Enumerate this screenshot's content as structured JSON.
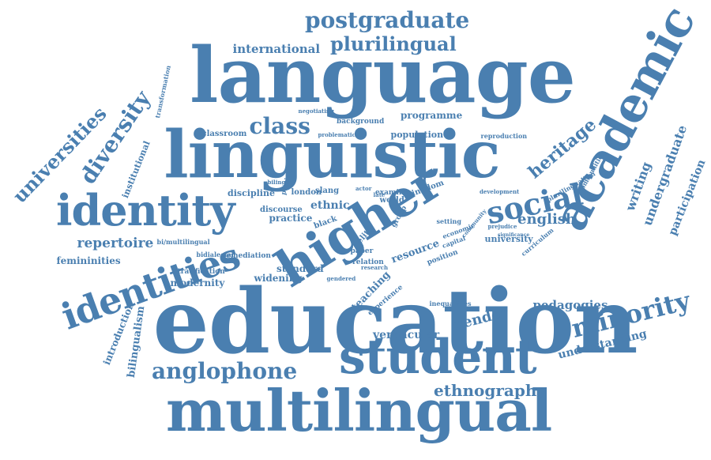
{
  "colors": {
    "word": "#4a7fb0",
    "background": "#ffffff"
  },
  "words": [
    {
      "id": "education",
      "text": "education"
    },
    {
      "id": "language",
      "text": "language"
    },
    {
      "id": "linguistic",
      "text": "linguistic"
    },
    {
      "id": "multilingual",
      "text": "multilingual"
    },
    {
      "id": "higher",
      "text": "higher"
    },
    {
      "id": "student",
      "text": "student"
    },
    {
      "id": "academic",
      "text": "academic"
    },
    {
      "id": "identity",
      "text": "identity"
    },
    {
      "id": "identities",
      "text": "identities"
    },
    {
      "id": "social",
      "text": "social"
    },
    {
      "id": "minority",
      "text": "minority"
    },
    {
      "id": "anglophone",
      "text": "anglophone"
    },
    {
      "id": "diversity",
      "text": "diversity"
    },
    {
      "id": "universities",
      "text": "universities"
    },
    {
      "id": "postgraduate",
      "text": "postgraduate"
    },
    {
      "id": "plurilingual",
      "text": "plurilingual"
    },
    {
      "id": "class",
      "text": "class"
    },
    {
      "id": "heritage",
      "text": "heritage"
    },
    {
      "id": "ethnography",
      "text": "ethnography"
    },
    {
      "id": "gender",
      "text": "gender"
    },
    {
      "id": "english",
      "text": "english"
    },
    {
      "id": "repertoire",
      "text": "repertoire"
    },
    {
      "id": "international",
      "text": "international"
    },
    {
      "id": "undergraduate",
      "text": "undergraduate"
    },
    {
      "id": "writing",
      "text": "writing"
    },
    {
      "id": "participation",
      "text": "participation"
    },
    {
      "id": "pedagogies",
      "text": "pedagogies"
    },
    {
      "id": "understanding",
      "text": "understanding"
    },
    {
      "id": "vernacular",
      "text": "vernacular"
    },
    {
      "id": "bilingualism",
      "text": "bilingualism"
    },
    {
      "id": "introduction",
      "text": "introduction"
    },
    {
      "id": "femininities",
      "text": "femininities"
    },
    {
      "id": "modernity",
      "text": "modernity"
    },
    {
      "id": "institutional",
      "text": "institutional"
    },
    {
      "id": "programme",
      "text": "programme"
    },
    {
      "id": "teaching",
      "text": "teaching"
    },
    {
      "id": "resource",
      "text": "resource"
    },
    {
      "id": "ethnic",
      "text": "ethnic"
    },
    {
      "id": "practice",
      "text": "practice"
    },
    {
      "id": "standard",
      "text": "standard"
    },
    {
      "id": "widening",
      "text": "widening"
    },
    {
      "id": "discipline",
      "text": "discipline"
    },
    {
      "id": "discourse",
      "text": "discourse"
    },
    {
      "id": "university",
      "text": "university"
    },
    {
      "id": "population",
      "text": "population"
    },
    {
      "id": "classroom",
      "text": "classroom"
    },
    {
      "id": "background",
      "text": "background"
    },
    {
      "id": "stratification",
      "text": "stratification"
    },
    {
      "id": "remediation",
      "text": "remediation"
    },
    {
      "id": "transformation",
      "text": "transformation"
    },
    {
      "id": "communities",
      "text": "communities"
    },
    {
      "id": "curriculum",
      "text": "curriculum"
    },
    {
      "id": "inequalities",
      "text": "inequalities"
    },
    {
      "id": "kingdom",
      "text": "kingdom"
    },
    {
      "id": "london",
      "text": "london"
    },
    {
      "id": "slang",
      "text": "slang"
    },
    {
      "id": "world",
      "text": "world"
    },
    {
      "id": "examine",
      "text": "examine"
    },
    {
      "id": "reproduction",
      "text": "reproduction"
    },
    {
      "id": "plurilingualism",
      "text": "plurilingualism"
    },
    {
      "id": "experience",
      "text": "experience"
    },
    {
      "id": "bimultilingual",
      "text": "bi/multilingual"
    },
    {
      "id": "bidialectal",
      "text": "bidialectal"
    },
    {
      "id": "participant",
      "text": "participant"
    },
    {
      "id": "negotiating",
      "text": "negotiating"
    },
    {
      "id": "gendered",
      "text": "gendered"
    },
    {
      "id": "position",
      "text": "position"
    },
    {
      "id": "paper",
      "text": "paper"
    },
    {
      "id": "relation",
      "text": "relation"
    },
    {
      "id": "economic",
      "text": "economic"
    },
    {
      "id": "capital",
      "text": "capital"
    },
    {
      "id": "setting",
      "text": "setting"
    },
    {
      "id": "development",
      "text": "development"
    },
    {
      "id": "prejudice",
      "text": "prejudice"
    },
    {
      "id": "black",
      "text": "black"
    },
    {
      "id": "elite",
      "text": "elite"
    },
    {
      "id": "group",
      "text": "group"
    },
    {
      "id": "community",
      "text": "community"
    },
    {
      "id": "bilingual",
      "text": "bilingual"
    },
    {
      "id": "actor",
      "text": "actor"
    },
    {
      "id": "late",
      "text": "late"
    },
    {
      "id": "problematic",
      "text": "problematic"
    },
    {
      "id": "research",
      "text": "research"
    },
    {
      "id": "significance",
      "text": "significance"
    }
  ]
}
